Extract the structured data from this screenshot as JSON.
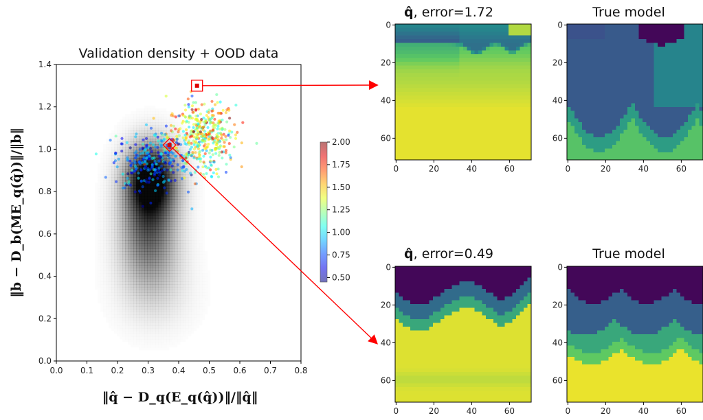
{
  "chart_data": [
    {
      "type": "scatter",
      "title": "Validation density + OOD data",
      "xlabel": "‖q̂ − D_q(E_q(q̂))‖/‖q̂‖",
      "ylabel": "‖b − D_b(ME_q(q̂))‖/‖b‖",
      "xlim": [
        0.0,
        0.8
      ],
      "ylim": [
        0.0,
        1.4
      ],
      "xticks": [
        "0.0",
        "0.1",
        "0.2",
        "0.3",
        "0.4",
        "0.5",
        "0.6",
        "0.7",
        "0.8"
      ],
      "yticks": [
        "0.0",
        "0.2",
        "0.4",
        "0.6",
        "0.8",
        "1.0",
        "1.2",
        "1.4"
      ],
      "grid": false,
      "density_background": {
        "description_units": "data",
        "blobs": [
          {
            "cx": 0.31,
            "cy": 0.86,
            "sx": 0.055,
            "sy": 0.11,
            "w": 1.0
          },
          {
            "cx": 0.3,
            "cy": 0.66,
            "sx": 0.06,
            "sy": 0.16,
            "w": 0.55
          },
          {
            "cx": 0.31,
            "cy": 0.45,
            "sx": 0.07,
            "sy": 0.15,
            "w": 0.16
          },
          {
            "cx": 0.33,
            "cy": 0.3,
            "sx": 0.09,
            "sy": 0.12,
            "w": 0.05
          }
        ]
      },
      "ood_cloud": {
        "clusters": [
          {
            "cx": 0.475,
            "cy": 1.06,
            "sx": 0.055,
            "sy": 0.085,
            "n": 420,
            "cmean": 1.35,
            "csd": 0.28
          },
          {
            "cx": 0.31,
            "cy": 0.95,
            "sx": 0.06,
            "sy": 0.07,
            "n": 260,
            "cmean": 0.78,
            "csd": 0.18
          }
        ]
      },
      "highlighted_points": [
        {
          "x": 0.46,
          "y": 1.3,
          "marker": "square"
        },
        {
          "x": 0.37,
          "y": 1.02,
          "marker": "diamond"
        }
      ],
      "colorbar": {
        "range": [
          0.45,
          2.0
        ],
        "ticks": [
          "0.50",
          "0.75",
          "1.00",
          "1.25",
          "1.50",
          "1.75",
          "2.00"
        ],
        "colormap": "jet"
      }
    },
    {
      "type": "heatmap",
      "title_symbol": "q̂",
      "title_suffix": ", error=1.72",
      "xticks": [
        "0",
        "20",
        "40",
        "60"
      ],
      "yticks": [
        "0",
        "20",
        "40",
        "60"
      ],
      "extent": [
        0,
        72
      ]
    },
    {
      "type": "heatmap",
      "title": "True model",
      "xticks": [
        "0",
        "20",
        "40",
        "60"
      ],
      "yticks": [
        "0",
        "20",
        "40",
        "60"
      ],
      "extent": [
        0,
        72
      ]
    },
    {
      "type": "heatmap",
      "title_symbol": "q̂",
      "title_suffix": ", error=0.49",
      "xticks": [
        "0",
        "20",
        "40",
        "60"
      ],
      "yticks": [
        "0",
        "20",
        "40",
        "60"
      ],
      "extent": [
        0,
        72
      ]
    },
    {
      "type": "heatmap",
      "title": "True model",
      "xticks": [
        "0",
        "20",
        "40",
        "60"
      ],
      "yticks": [
        "0",
        "20",
        "40",
        "60"
      ],
      "extent": [
        0,
        72
      ]
    }
  ],
  "colors": {
    "arrow": "#ff0000",
    "viridis_dark": "#440154",
    "viridis_blue": "#31688e",
    "viridis_teal": "#21918c",
    "viridis_green": "#5ec962",
    "viridis_yellow": "#fde725"
  }
}
